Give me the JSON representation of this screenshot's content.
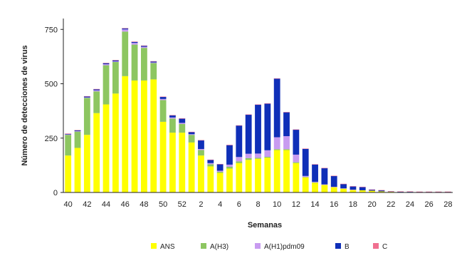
{
  "chart_data": {
    "type": "bar",
    "stacked": true,
    "xlabel": "Semanas",
    "ylabel": "Número de detecciones de virus",
    "ylim": [
      0,
      800
    ],
    "yticks": [
      0,
      250,
      500,
      750
    ],
    "grid": false,
    "legend_position": "bottom",
    "categories": [
      "40",
      "41",
      "42",
      "43",
      "44",
      "45",
      "46",
      "47",
      "48",
      "49",
      "50",
      "51",
      "52",
      "1",
      "2",
      "3",
      "4",
      "5",
      "6",
      "7",
      "8",
      "9",
      "10",
      "11",
      "12",
      "13",
      "14",
      "15",
      "16",
      "17",
      "18",
      "19",
      "20",
      "21",
      "22",
      "23",
      "24",
      "25",
      "26",
      "27",
      "28"
    ],
    "xtick_labels": [
      "40",
      "",
      "42",
      "",
      "44",
      "",
      "46",
      "",
      "48",
      "",
      "50",
      "",
      "52",
      "",
      "2",
      "",
      "4",
      "",
      "6",
      "",
      "8",
      "",
      "10",
      "",
      "12",
      "",
      "14",
      "",
      "16",
      "",
      "18",
      "",
      "20",
      "",
      "22",
      "",
      "24",
      "",
      "26",
      "",
      "28"
    ],
    "series": [
      {
        "name": "ANS",
        "color": "#FFFF00",
        "values": [
          170,
          205,
          265,
          365,
          405,
          455,
          535,
          515,
          515,
          520,
          325,
          275,
          275,
          230,
          170,
          120,
          90,
          110,
          135,
          150,
          155,
          160,
          195,
          195,
          135,
          70,
          45,
          35,
          25,
          18,
          12,
          10,
          8,
          5,
          3,
          2,
          2,
          1,
          1,
          1,
          0
        ]
      },
      {
        "name": "A(H3)",
        "color": "#8DC661",
        "values": [
          95,
          75,
          170,
          100,
          180,
          145,
          205,
          165,
          150,
          75,
          100,
          65,
          40,
          35,
          25,
          10,
          5,
          8,
          8,
          8,
          4,
          4,
          4,
          4,
          4,
          1,
          1,
          0,
          0,
          0,
          0,
          0,
          0,
          0,
          0,
          0,
          0,
          0,
          0,
          0,
          0
        ]
      },
      {
        "name": "A(H1)pdm09",
        "color": "#C89BF0",
        "values": [
          2,
          2,
          2,
          5,
          5,
          3,
          10,
          8,
          5,
          3,
          5,
          5,
          5,
          3,
          5,
          5,
          5,
          10,
          20,
          20,
          20,
          30,
          55,
          60,
          35,
          5,
          3,
          2,
          1,
          1,
          1,
          0,
          0,
          0,
          0,
          0,
          0,
          0,
          0,
          0,
          0
        ]
      },
      {
        "name": "B",
        "color": "#0F2FB8",
        "values": [
          3,
          4,
          5,
          5,
          5,
          5,
          5,
          5,
          5,
          5,
          10,
          10,
          20,
          10,
          40,
          15,
          30,
          90,
          145,
          180,
          225,
          215,
          270,
          110,
          115,
          125,
          80,
          75,
          50,
          20,
          15,
          15,
          5,
          5,
          2,
          2,
          2,
          2,
          2,
          2,
          3
        ]
      },
      {
        "name": "C",
        "color": "#F07090",
        "values": [
          1,
          1,
          1,
          1,
          1,
          1,
          1,
          1,
          1,
          1,
          1,
          1,
          1,
          1,
          1,
          1,
          1,
          1,
          1,
          1,
          1,
          1,
          1,
          1,
          1,
          1,
          1,
          1,
          1,
          1,
          1,
          1,
          1,
          1,
          1,
          1,
          1,
          1,
          1,
          1,
          1
        ]
      }
    ]
  }
}
